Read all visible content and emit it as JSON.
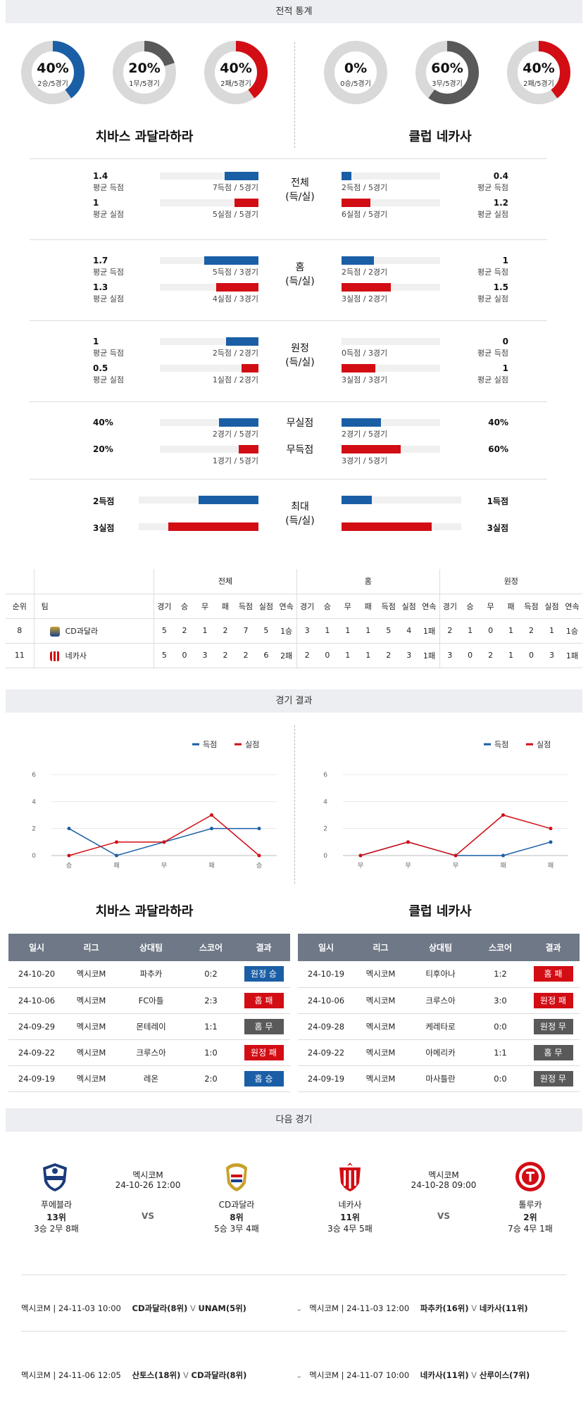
{
  "headers": {
    "stats": "전적 통계",
    "results": "경기 결과",
    "next": "다음 경기"
  },
  "teams": {
    "home": "치바스 과달라하라",
    "away": "클럽 네카사"
  },
  "donuts": [
    {
      "pct": "40%",
      "sub": "2승/5경기",
      "value": 0.4,
      "color": "#1a5ea6"
    },
    {
      "pct": "20%",
      "sub": "1무/5경기",
      "value": 0.2,
      "color": "#595959"
    },
    {
      "pct": "40%",
      "sub": "2패/5경기",
      "value": 0.4,
      "color": "#d20d14"
    },
    {
      "pct": "0%",
      "sub": "0승/5경기",
      "value": 0.0,
      "color": "#1a5ea6"
    },
    {
      "pct": "60%",
      "sub": "3무/5경기",
      "value": 0.6,
      "color": "#595959"
    },
    {
      "pct": "40%",
      "sub": "2패/5경기",
      "value": 0.4,
      "color": "#d20d14"
    }
  ],
  "stat_groups": [
    {
      "label": "전체\n(득/실)",
      "rows": [
        {
          "l_val": "1.4",
          "l_lbl": "평균 득점",
          "l_cnt": "7득점 / 5경기",
          "l_frac": 0.34,
          "r_val": "0.4",
          "r_lbl": "평균 득점",
          "r_cnt": "2득점 / 5경기",
          "r_frac": 0.1,
          "color": "blue"
        },
        {
          "l_val": "1",
          "l_lbl": "평균 실점",
          "l_cnt": "5실점 / 5경기",
          "l_frac": 0.24,
          "r_val": "1.2",
          "r_lbl": "평균 실점",
          "r_cnt": "6실점 / 5경기",
          "r_frac": 0.29,
          "color": "red"
        }
      ]
    },
    {
      "label": "홈\n(득/실)",
      "rows": [
        {
          "l_val": "1.7",
          "l_lbl": "평균 득점",
          "l_cnt": "5득점 / 3경기",
          "l_frac": 0.55,
          "r_val": "1",
          "r_lbl": "평균 득점",
          "r_cnt": "2득점 / 2경기",
          "r_frac": 0.33,
          "color": "blue"
        },
        {
          "l_val": "1.3",
          "l_lbl": "평균 실점",
          "l_cnt": "4실점 / 3경기",
          "l_frac": 0.43,
          "r_val": "1.5",
          "r_lbl": "평균 실점",
          "r_cnt": "3실점 / 2경기",
          "r_frac": 0.5,
          "color": "red"
        }
      ]
    },
    {
      "label": "원정\n(득/실)",
      "rows": [
        {
          "l_val": "1",
          "l_lbl": "평균 득점",
          "l_cnt": "2득점 / 2경기",
          "l_frac": 0.33,
          "r_val": "0",
          "r_lbl": "평균 득점",
          "r_cnt": "0득점 / 3경기",
          "r_frac": 0.0,
          "color": "blue"
        },
        {
          "l_val": "0.5",
          "l_lbl": "평균 실점",
          "l_cnt": "1실점 / 2경기",
          "l_frac": 0.17,
          "r_val": "1",
          "r_lbl": "평균 실점",
          "r_cnt": "3실점 / 3경기",
          "r_frac": 0.34,
          "color": "red"
        }
      ]
    },
    {
      "label": "",
      "rows": [
        {
          "l_val": "40%",
          "l_lbl": "",
          "l_cnt": "2경기 / 5경기",
          "l_frac": 0.4,
          "r_val": "40%",
          "r_lbl": "",
          "r_cnt": "2경기 / 5경기",
          "r_frac": 0.4,
          "color": "blue",
          "mid": "무실점"
        },
        {
          "l_val": "20%",
          "l_lbl": "",
          "l_cnt": "1경기 / 5경기",
          "l_frac": 0.2,
          "r_val": "60%",
          "r_lbl": "",
          "r_cnt": "3경기 / 5경기",
          "r_frac": 0.6,
          "color": "red",
          "mid": "무득점"
        }
      ]
    },
    {
      "label": "최대\n(득/실)",
      "rows": [
        {
          "l_val": "2득점",
          "l_lbl": "",
          "l_cnt": "",
          "l_frac": 0.5,
          "r_val": "1득점",
          "r_lbl": "",
          "r_cnt": "",
          "r_frac": 0.25,
          "color": "blue"
        },
        {
          "l_val": "3실점",
          "l_lbl": "",
          "l_cnt": "",
          "l_frac": 0.75,
          "r_val": "3실점",
          "r_lbl": "",
          "r_cnt": "",
          "r_frac": 0.75,
          "color": "red"
        }
      ]
    }
  ],
  "ranking": {
    "groups": [
      "전체",
      "홈",
      "원정"
    ],
    "cols_left": [
      "순위",
      "팀"
    ],
    "cols": [
      "경기",
      "승",
      "무",
      "패",
      "득점",
      "실점",
      "연속"
    ],
    "rows": [
      {
        "rank": "8",
        "team": "CD과달라",
        "all": [
          "5",
          "2",
          "1",
          "2",
          "7",
          "5",
          "1승"
        ],
        "home": [
          "3",
          "1",
          "1",
          "1",
          "5",
          "4",
          "1패"
        ],
        "away": [
          "2",
          "1",
          "0",
          "1",
          "2",
          "1",
          "1승"
        ]
      },
      {
        "rank": "11",
        "team": "네카사",
        "all": [
          "5",
          "0",
          "3",
          "2",
          "2",
          "6",
          "2패"
        ],
        "home": [
          "2",
          "0",
          "1",
          "1",
          "2",
          "3",
          "1패"
        ],
        "away": [
          "3",
          "0",
          "2",
          "1",
          "0",
          "3",
          "1패"
        ]
      }
    ]
  },
  "chart_data": [
    {
      "type": "line",
      "categories": [
        "승",
        "패",
        "무",
        "패",
        "승"
      ],
      "ylim": [
        0,
        6
      ],
      "yticks": [
        "0",
        "2",
        "4",
        "6"
      ],
      "legend_position": "top-right",
      "series": [
        {
          "name": "득점",
          "values": [
            2,
            0,
            1,
            2,
            2
          ],
          "color": "#1a5ea6"
        },
        {
          "name": "실점",
          "values": [
            0,
            1,
            1,
            3,
            0
          ],
          "color": "#d20d14"
        }
      ]
    },
    {
      "type": "line",
      "categories": [
        "무",
        "무",
        "무",
        "패",
        "패"
      ],
      "ylim": [
        0,
        6
      ],
      "yticks": [
        "0",
        "2",
        "4",
        "6"
      ],
      "legend_position": "top-right",
      "series": [
        {
          "name": "득점",
          "values": [
            0,
            1,
            0,
            0,
            1
          ],
          "color": "#1a5ea6"
        },
        {
          "name": "실점",
          "values": [
            0,
            1,
            0,
            3,
            2
          ],
          "color": "#d20d14"
        }
      ]
    }
  ],
  "result_cols": [
    "일시",
    "리그",
    "상대팀",
    "스코어",
    "결과"
  ],
  "results_home": [
    {
      "date": "24-10-20",
      "league": "멕시코M",
      "opp": "파추카",
      "score": "0:2",
      "res": "원정 승",
      "c": "blue"
    },
    {
      "date": "24-10-06",
      "league": "멕시코M",
      "opp": "FC아틀",
      "score": "2:3",
      "res": "홈 패",
      "c": "red"
    },
    {
      "date": "24-09-29",
      "league": "멕시코M",
      "opp": "몬테레이",
      "score": "1:1",
      "res": "홈 무",
      "c": "gray"
    },
    {
      "date": "24-09-22",
      "league": "멕시코M",
      "opp": "크루스아",
      "score": "1:0",
      "res": "원정 패",
      "c": "red"
    },
    {
      "date": "24-09-19",
      "league": "멕시코M",
      "opp": "레온",
      "score": "2:0",
      "res": "홈 승",
      "c": "blue"
    }
  ],
  "results_away": [
    {
      "date": "24-10-19",
      "league": "멕시코M",
      "opp": "티후아나",
      "score": "1:2",
      "res": "홈 패",
      "c": "red"
    },
    {
      "date": "24-10-06",
      "league": "멕시코M",
      "opp": "크루스아",
      "score": "3:0",
      "res": "원정 패",
      "c": "red"
    },
    {
      "date": "24-09-28",
      "league": "멕시코M",
      "opp": "케레타로",
      "score": "0:0",
      "res": "원정 무",
      "c": "gray"
    },
    {
      "date": "24-09-22",
      "league": "멕시코M",
      "opp": "아메리카",
      "score": "1:1",
      "res": "홈 무",
      "c": "gray"
    },
    {
      "date": "24-09-19",
      "league": "멕시코M",
      "opp": "마사틀란",
      "score": "0:0",
      "res": "원정 무",
      "c": "gray"
    }
  ],
  "next_matches": [
    {
      "league": "멕시코M",
      "datetime": "24-10-26 12:00",
      "vs": "VS",
      "left": {
        "name": "푸에블라",
        "rank": "13위",
        "rec": "3승 2무 8패"
      },
      "right": {
        "name": "CD과달라",
        "rank": "8위",
        "rec": "5승 3무 4패"
      }
    },
    {
      "league": "멕시코M",
      "datetime": "24-10-28 09:00",
      "vs": "VS",
      "left": {
        "name": "네카사",
        "rank": "11위",
        "rec": "3승 4무 5패"
      },
      "right": {
        "name": "톨루카",
        "rank": "2위",
        "rec": "7승 4무 1패"
      }
    }
  ],
  "fixtures": [
    {
      "info": "멕시코M | 24-11-03 10:00",
      "t1": "CD과달라(8위)",
      "v": "V",
      "t2": "UNAM(5위)"
    },
    {
      "info": "멕시코M | 24-11-03 12:00",
      "t1": "파추카(16위)",
      "v": "V",
      "t2": "네카사(11위)"
    },
    {
      "info": "멕시코M | 24-11-06 12:05",
      "t1": "산토스(18위)",
      "v": "V",
      "t2": "CD과달라(8위)"
    },
    {
      "info": "멕시코M | 24-11-07 10:00",
      "t1": "네카사(11위)",
      "v": "V",
      "t2": "산루이스(7위)"
    }
  ]
}
